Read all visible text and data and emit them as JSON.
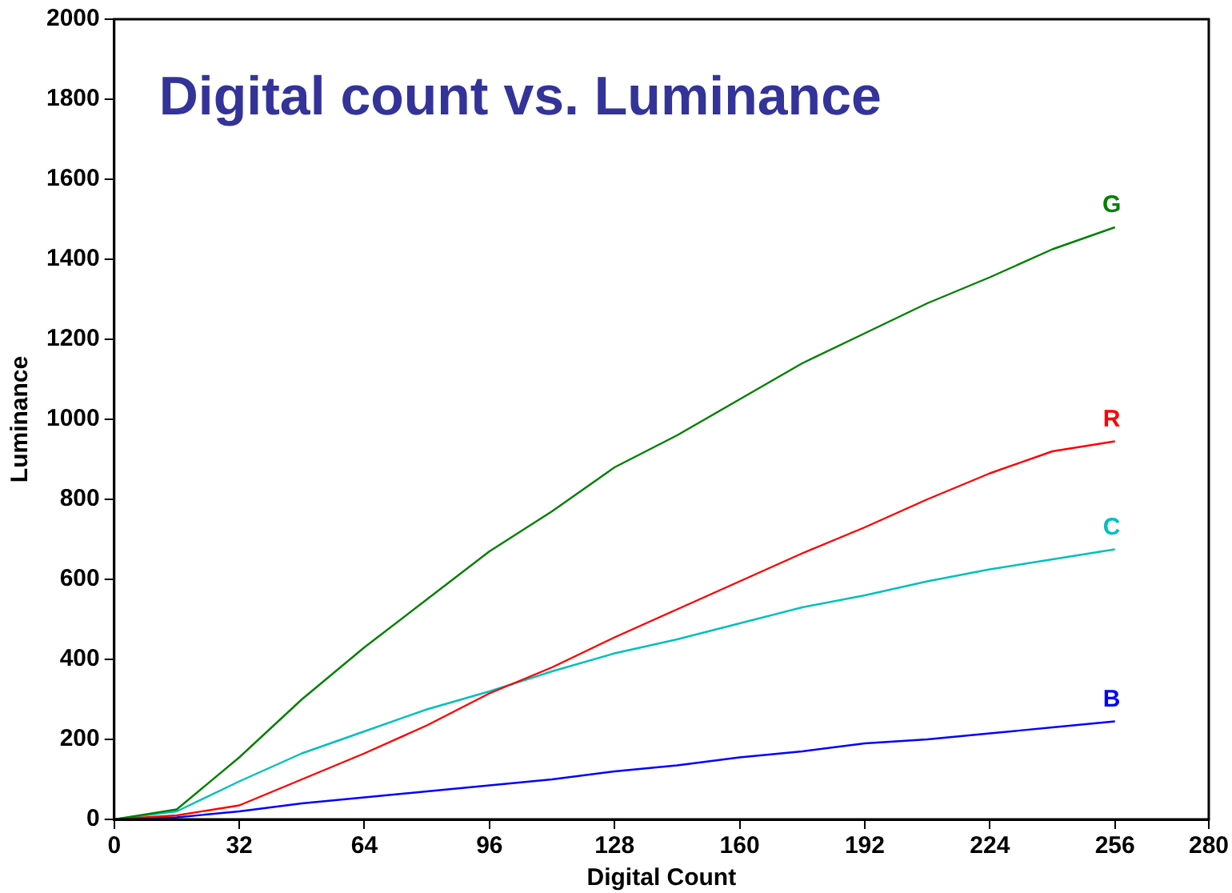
{
  "chart_data": {
    "type": "line",
    "title": "Digital count vs. Luminance",
    "xlabel": "Digital Count",
    "ylabel": "Luminance",
    "x": [
      0,
      16,
      32,
      48,
      64,
      80,
      96,
      112,
      128,
      144,
      160,
      176,
      192,
      208,
      224,
      240,
      256
    ],
    "series": [
      {
        "name": "G",
        "color": "#008000",
        "values": [
          0,
          25,
          155,
          300,
          430,
          550,
          670,
          770,
          880,
          960,
          1050,
          1140,
          1215,
          1290,
          1355,
          1425,
          1480
        ]
      },
      {
        "name": "R",
        "color": "#ff0000",
        "values": [
          0,
          10,
          35,
          100,
          165,
          235,
          315,
          380,
          455,
          525,
          595,
          665,
          730,
          800,
          865,
          920,
          945
        ]
      },
      {
        "name": "C",
        "color": "#00bfbf",
        "values": [
          0,
          20,
          95,
          165,
          220,
          275,
          320,
          370,
          415,
          450,
          490,
          530,
          560,
          595,
          625,
          650,
          675
        ]
      },
      {
        "name": "B",
        "color": "#0000ff",
        "values": [
          0,
          5,
          20,
          40,
          55,
          70,
          85,
          100,
          120,
          135,
          155,
          170,
          190,
          200,
          215,
          230,
          245
        ]
      }
    ],
    "xlim": [
      0,
      280
    ],
    "xticks": [
      0,
      32,
      64,
      96,
      128,
      160,
      192,
      224,
      256,
      280
    ],
    "ylim": [
      0,
      2000
    ],
    "yticks": [
      0,
      200,
      400,
      600,
      800,
      1000,
      1200,
      1400,
      1600,
      1800,
      2000
    ],
    "grid": false,
    "legend": false,
    "marker": "none",
    "line_style": "solid"
  }
}
